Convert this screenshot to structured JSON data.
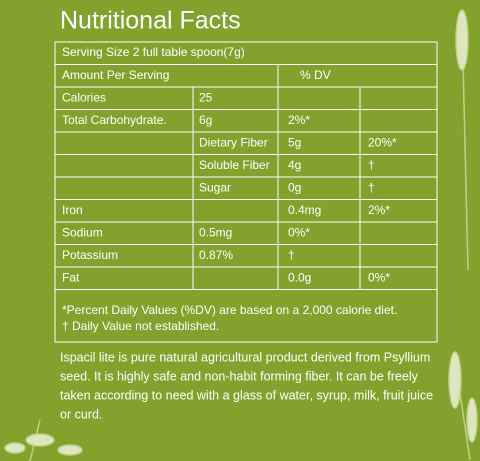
{
  "title": "Nutritional Facts",
  "serving": "Serving Size 2 full table spoon(7g)",
  "amount_header": [
    "Amount Per Serving",
    "% DV"
  ],
  "table": {
    "rows": [
      [
        "Calories",
        "25",
        null,
        null
      ],
      [
        "Total Carbohydrate.",
        "6g",
        "2%*",
        null
      ],
      [
        null,
        "Dietary Fiber",
        "5g",
        "20%*"
      ],
      [
        null,
        "Soluble Fiber",
        "4g",
        "†"
      ],
      [
        null,
        "Sugar",
        "0g",
        "†"
      ],
      [
        "Iron",
        null,
        "0.4mg",
        "2%*"
      ],
      [
        "Sodium",
        "0.5mg",
        "0%*",
        null
      ],
      [
        "Potassium",
        "0.87%",
        "†",
        null
      ],
      [
        "Fat",
        null,
        "0.0g",
        "0%*"
      ]
    ]
  },
  "footnotes": [
    "*Percent Daily Values (%DV) are based on a 2,000 calorie diet.",
    "† Daily Value not established."
  ],
  "description": [
    "Ispacil lite is pure natural agricultural product derived from Psyllium",
    "seed. It is highly safe and non-habit forming fiber. It can be freely",
    "taken according to need with a glass of water, syrup, milk, fruit juice",
    "or curd."
  ]
}
